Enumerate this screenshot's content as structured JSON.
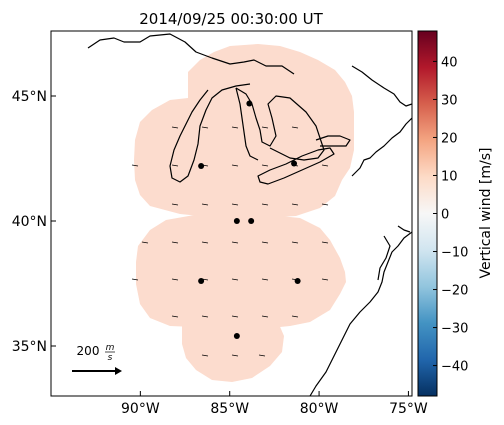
{
  "title": "2014/09/25 00:30:00 UT",
  "map": {
    "lon_range": [
      -95,
      -74.8
    ],
    "lat_range": [
      33,
      47.6
    ],
    "lat_ticks": [
      {
        "value": 35,
        "label": "35°N"
      },
      {
        "value": 40,
        "label": "40°N"
      },
      {
        "value": 45,
        "label": "45°N"
      }
    ],
    "lon_ticks": [
      {
        "value": -90,
        "label": "90°W"
      },
      {
        "value": -85,
        "label": "85°W"
      },
      {
        "value": -80,
        "label": "80°W"
      },
      {
        "value": -75,
        "label": "75°W"
      }
    ],
    "coverage_color": "#fcdcce",
    "stations": [
      {
        "lon": -86.6,
        "lat": 42.2
      },
      {
        "lon": -83.9,
        "lat": 44.7
      },
      {
        "lon": -81.4,
        "lat": 42.3
      },
      {
        "lon": -84.6,
        "lat": 40.0
      },
      {
        "lon": -83.8,
        "lat": 40.0
      },
      {
        "lon": -86.6,
        "lat": 37.6
      },
      {
        "lon": -81.2,
        "lat": 37.6
      },
      {
        "lon": -84.6,
        "lat": 35.4
      }
    ]
  },
  "scale_arrow": {
    "label_value": "200",
    "label_num": "m",
    "label_den": "s"
  },
  "colorbar": {
    "label": "Vertical wind [m/s]",
    "range": [
      -48,
      48
    ],
    "ticks": [
      "40",
      "30",
      "20",
      "10",
      "0",
      "−10",
      "−20",
      "−30",
      "−40"
    ],
    "tick_values": [
      40,
      30,
      20,
      10,
      0,
      -10,
      -20,
      -30,
      -40
    ],
    "colors": [
      "#053061",
      "#2166ac",
      "#4393c3",
      "#92c5de",
      "#d1e5f0",
      "#f7f7f7",
      "#fddbc7",
      "#f4a582",
      "#d6604d",
      "#b2182b",
      "#67001f"
    ]
  }
}
